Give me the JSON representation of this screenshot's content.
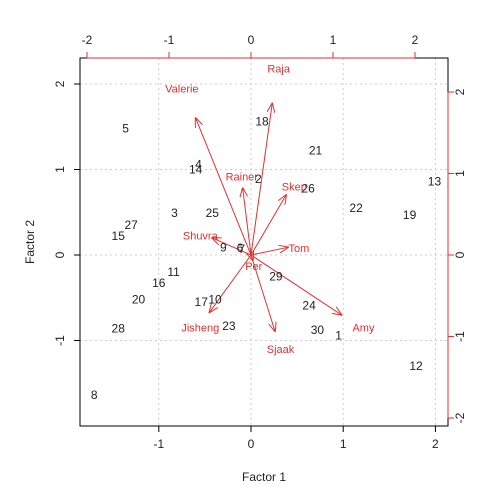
{
  "chart_data": {
    "type": "scatter",
    "subtype": "biplot",
    "title": "",
    "xlabel": "Factor 1",
    "ylabel": "Factor 2",
    "xlim": [
      -1.85,
      2.15
    ],
    "ylim": [
      -1.95,
      2.3
    ],
    "x_ticks": [
      -1,
      0,
      1,
      2
    ],
    "y_ticks": [
      -1,
      0,
      1,
      2
    ],
    "x_ticks_top": [
      -2,
      -1,
      0,
      1,
      2
    ],
    "y_ticks_right": [
      -2,
      -1,
      0,
      1,
      2
    ],
    "grid": true,
    "colors": {
      "points": "#222222",
      "arrows": "#e03030",
      "grid": "#cccccc",
      "frame": "#000000"
    },
    "points": [
      {
        "label": "5",
        "x": -1.36,
        "y": 1.48
      },
      {
        "label": "4",
        "x": -0.57,
        "y": 1.06
      },
      {
        "label": "14",
        "x": -0.6,
        "y": 1.0
      },
      {
        "label": "18",
        "x": 0.12,
        "y": 1.56
      },
      {
        "label": "21",
        "x": 0.7,
        "y": 1.22
      },
      {
        "label": "2",
        "x": 0.08,
        "y": 0.89
      },
      {
        "label": "26",
        "x": 0.62,
        "y": 0.78
      },
      {
        "label": "13",
        "x": 1.99,
        "y": 0.86
      },
      {
        "label": "22",
        "x": 1.14,
        "y": 0.55
      },
      {
        "label": "19",
        "x": 1.72,
        "y": 0.47
      },
      {
        "label": "3",
        "x": -0.83,
        "y": 0.49
      },
      {
        "label": "25",
        "x": -0.42,
        "y": 0.49
      },
      {
        "label": "27",
        "x": -1.3,
        "y": 0.35
      },
      {
        "label": "15",
        "x": -1.44,
        "y": 0.22
      },
      {
        "label": "9",
        "x": -0.3,
        "y": 0.09
      },
      {
        "label": "6",
        "x": -0.12,
        "y": 0.08
      },
      {
        "label": "7",
        "x": -0.1,
        "y": 0.07
      },
      {
        "label": "11",
        "x": -0.84,
        "y": -0.2
      },
      {
        "label": "16",
        "x": -1.0,
        "y": -0.33
      },
      {
        "label": "29",
        "x": 0.27,
        "y": -0.25
      },
      {
        "label": "20",
        "x": -1.22,
        "y": -0.52
      },
      {
        "label": "17",
        "x": -0.54,
        "y": -0.55
      },
      {
        "label": "10",
        "x": -0.39,
        "y": -0.52
      },
      {
        "label": "24",
        "x": 0.63,
        "y": -0.59
      },
      {
        "label": "28",
        "x": -1.44,
        "y": -0.86
      },
      {
        "label": "23",
        "x": -0.24,
        "y": -0.83
      },
      {
        "label": "30",
        "x": 0.72,
        "y": -0.88
      },
      {
        "label": "1",
        "x": 0.95,
        "y": -0.94
      },
      {
        "label": "12",
        "x": 1.79,
        "y": -1.3
      },
      {
        "label": "8",
        "x": -1.7,
        "y": -1.64
      }
    ],
    "variables": [
      {
        "name": "Raja",
        "x": 0.23,
        "y": 1.77,
        "lx": 0.3,
        "ly": 2.18
      },
      {
        "name": "Valerie",
        "x": -0.6,
        "y": 1.6,
        "lx": -0.75,
        "ly": 1.95
      },
      {
        "name": "Rainer",
        "x": -0.09,
        "y": 0.78,
        "lx": -0.1,
        "ly": 0.92
      },
      {
        "name": "Skep",
        "x": 0.38,
        "y": 0.7,
        "lx": 0.47,
        "ly": 0.8
      },
      {
        "name": "Shuvra",
        "x": -0.42,
        "y": 0.2,
        "lx": -0.55,
        "ly": 0.23
      },
      {
        "name": "Tom",
        "x": 0.4,
        "y": 0.09,
        "lx": 0.52,
        "ly": 0.08
      },
      {
        "name": "Per",
        "x": 0.02,
        "y": -0.06,
        "lx": 0.03,
        "ly": -0.13
      },
      {
        "name": "Jisheng",
        "x": -0.45,
        "y": -0.67,
        "lx": -0.55,
        "ly": -0.85
      },
      {
        "name": "Sjaak",
        "x": 0.26,
        "y": -0.89,
        "lx": 0.32,
        "ly": -1.1
      },
      {
        "name": "Amy",
        "x": 0.98,
        "y": -0.7,
        "lx": 1.22,
        "ly": -0.85
      }
    ]
  }
}
